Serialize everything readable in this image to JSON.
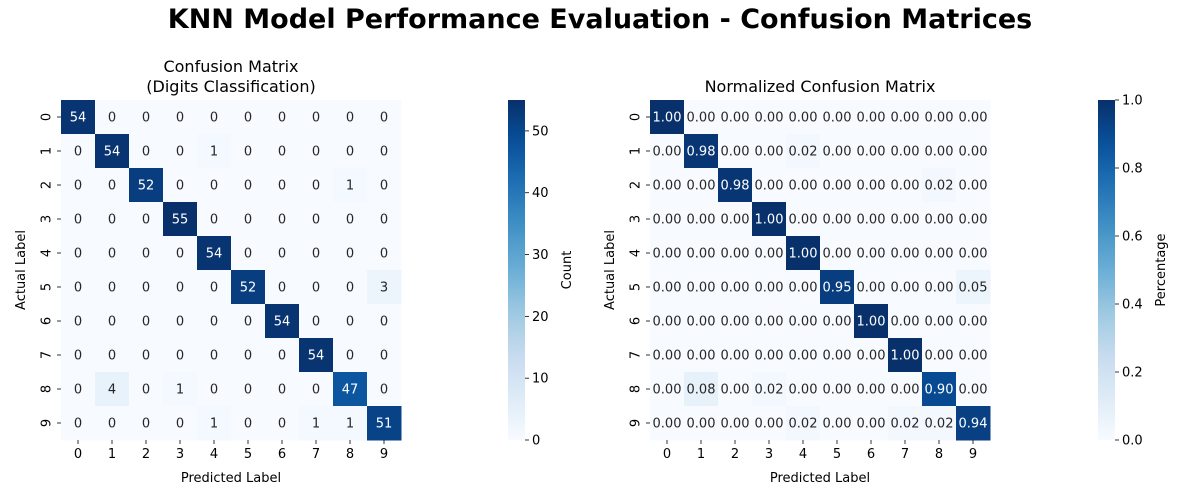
{
  "figure": {
    "title": "KNN Model Performance Evaluation - Confusion Matrices"
  },
  "chart_data": [
    {
      "type": "heatmap",
      "title_lines": [
        "Confusion Matrix",
        "(Digits Classification)"
      ],
      "xlabel": "Predicted Label",
      "ylabel": "Actual Label",
      "x_ticks": [
        "0",
        "1",
        "2",
        "3",
        "4",
        "5",
        "6",
        "7",
        "8",
        "9"
      ],
      "y_ticks": [
        "0",
        "1",
        "2",
        "3",
        "4",
        "5",
        "6",
        "7",
        "8",
        "9"
      ],
      "colormap": "Blues",
      "vmin": 0,
      "vmax": 55,
      "colorbar_label": "Count",
      "colorbar_ticks": [
        "0",
        "10",
        "20",
        "30",
        "40",
        "50"
      ],
      "values": [
        [
          54,
          0,
          0,
          0,
          0,
          0,
          0,
          0,
          0,
          0
        ],
        [
          0,
          54,
          0,
          0,
          1,
          0,
          0,
          0,
          0,
          0
        ],
        [
          0,
          0,
          52,
          0,
          0,
          0,
          0,
          0,
          1,
          0
        ],
        [
          0,
          0,
          0,
          55,
          0,
          0,
          0,
          0,
          0,
          0
        ],
        [
          0,
          0,
          0,
          0,
          54,
          0,
          0,
          0,
          0,
          0
        ],
        [
          0,
          0,
          0,
          0,
          0,
          52,
          0,
          0,
          0,
          3
        ],
        [
          0,
          0,
          0,
          0,
          0,
          0,
          54,
          0,
          0,
          0
        ],
        [
          0,
          0,
          0,
          0,
          0,
          0,
          0,
          54,
          0,
          0
        ],
        [
          0,
          4,
          0,
          1,
          0,
          0,
          0,
          0,
          47,
          0
        ],
        [
          0,
          0,
          0,
          0,
          1,
          0,
          0,
          1,
          1,
          51
        ]
      ],
      "labels": [
        [
          "54",
          "0",
          "0",
          "0",
          "0",
          "0",
          "0",
          "0",
          "0",
          "0"
        ],
        [
          "0",
          "54",
          "0",
          "0",
          "1",
          "0",
          "0",
          "0",
          "0",
          "0"
        ],
        [
          "0",
          "0",
          "52",
          "0",
          "0",
          "0",
          "0",
          "0",
          "1",
          "0"
        ],
        [
          "0",
          "0",
          "0",
          "55",
          "0",
          "0",
          "0",
          "0",
          "0",
          "0"
        ],
        [
          "0",
          "0",
          "0",
          "0",
          "54",
          "0",
          "0",
          "0",
          "0",
          "0"
        ],
        [
          "0",
          "0",
          "0",
          "0",
          "0",
          "52",
          "0",
          "0",
          "0",
          "3"
        ],
        [
          "0",
          "0",
          "0",
          "0",
          "0",
          "0",
          "54",
          "0",
          "0",
          "0"
        ],
        [
          "0",
          "0",
          "0",
          "0",
          "0",
          "0",
          "0",
          "54",
          "0",
          "0"
        ],
        [
          "0",
          "4",
          "0",
          "1",
          "0",
          "0",
          "0",
          "0",
          "47",
          "0"
        ],
        [
          "0",
          "0",
          "0",
          "0",
          "1",
          "0",
          "0",
          "1",
          "1",
          "51"
        ]
      ]
    },
    {
      "type": "heatmap",
      "title_lines": [
        "Normalized Confusion Matrix"
      ],
      "xlabel": "Predicted Label",
      "ylabel": "Actual Label",
      "x_ticks": [
        "0",
        "1",
        "2",
        "3",
        "4",
        "5",
        "6",
        "7",
        "8",
        "9"
      ],
      "y_ticks": [
        "0",
        "1",
        "2",
        "3",
        "4",
        "5",
        "6",
        "7",
        "8",
        "9"
      ],
      "colormap": "Blues",
      "vmin": 0,
      "vmax": 1,
      "colorbar_label": "Percentage",
      "colorbar_ticks": [
        "0.0",
        "0.2",
        "0.4",
        "0.6",
        "0.8",
        "1.0"
      ],
      "values": [
        [
          1.0,
          0.0,
          0.0,
          0.0,
          0.0,
          0.0,
          0.0,
          0.0,
          0.0,
          0.0
        ],
        [
          0.0,
          0.98,
          0.0,
          0.0,
          0.02,
          0.0,
          0.0,
          0.0,
          0.0,
          0.0
        ],
        [
          0.0,
          0.0,
          0.98,
          0.0,
          0.0,
          0.0,
          0.0,
          0.0,
          0.02,
          0.0
        ],
        [
          0.0,
          0.0,
          0.0,
          1.0,
          0.0,
          0.0,
          0.0,
          0.0,
          0.0,
          0.0
        ],
        [
          0.0,
          0.0,
          0.0,
          0.0,
          1.0,
          0.0,
          0.0,
          0.0,
          0.0,
          0.0
        ],
        [
          0.0,
          0.0,
          0.0,
          0.0,
          0.0,
          0.95,
          0.0,
          0.0,
          0.0,
          0.05
        ],
        [
          0.0,
          0.0,
          0.0,
          0.0,
          0.0,
          0.0,
          1.0,
          0.0,
          0.0,
          0.0
        ],
        [
          0.0,
          0.0,
          0.0,
          0.0,
          0.0,
          0.0,
          0.0,
          1.0,
          0.0,
          0.0
        ],
        [
          0.0,
          0.08,
          0.0,
          0.02,
          0.0,
          0.0,
          0.0,
          0.0,
          0.9,
          0.0
        ],
        [
          0.0,
          0.0,
          0.0,
          0.0,
          0.02,
          0.0,
          0.0,
          0.02,
          0.02,
          0.94
        ]
      ],
      "labels": [
        [
          "1.00",
          "0.00",
          "0.00",
          "0.00",
          "0.00",
          "0.00",
          "0.00",
          "0.00",
          "0.00",
          "0.00"
        ],
        [
          "0.00",
          "0.98",
          "0.00",
          "0.00",
          "0.02",
          "0.00",
          "0.00",
          "0.00",
          "0.00",
          "0.00"
        ],
        [
          "0.00",
          "0.00",
          "0.98",
          "0.00",
          "0.00",
          "0.00",
          "0.00",
          "0.00",
          "0.02",
          "0.00"
        ],
        [
          "0.00",
          "0.00",
          "0.00",
          "1.00",
          "0.00",
          "0.00",
          "0.00",
          "0.00",
          "0.00",
          "0.00"
        ],
        [
          "0.00",
          "0.00",
          "0.00",
          "0.00",
          "1.00",
          "0.00",
          "0.00",
          "0.00",
          "0.00",
          "0.00"
        ],
        [
          "0.00",
          "0.00",
          "0.00",
          "0.00",
          "0.00",
          "0.95",
          "0.00",
          "0.00",
          "0.00",
          "0.05"
        ],
        [
          "0.00",
          "0.00",
          "0.00",
          "0.00",
          "0.00",
          "0.00",
          "1.00",
          "0.00",
          "0.00",
          "0.00"
        ],
        [
          "0.00",
          "0.00",
          "0.00",
          "0.00",
          "0.00",
          "0.00",
          "0.00",
          "1.00",
          "0.00",
          "0.00"
        ],
        [
          "0.00",
          "0.08",
          "0.00",
          "0.02",
          "0.00",
          "0.00",
          "0.00",
          "0.00",
          "0.90",
          "0.00"
        ],
        [
          "0.00",
          "0.00",
          "0.00",
          "0.00",
          "0.02",
          "0.00",
          "0.00",
          "0.02",
          "0.02",
          "0.94"
        ]
      ]
    }
  ]
}
